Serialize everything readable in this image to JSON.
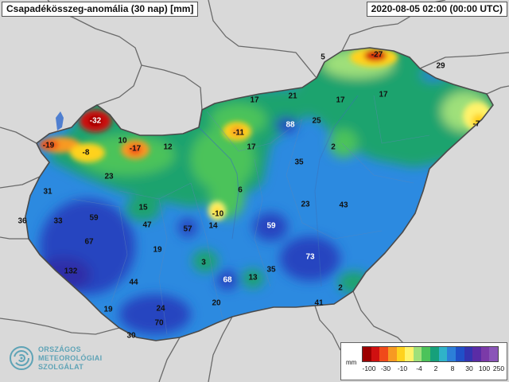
{
  "title": "Csapadékösszeg-anomália (30 nap) [mm]",
  "timestamp": "2020-08-05 02:00 (00:00 UTC)",
  "logo": {
    "line1": "ORSZÁGOS",
    "line2": "METEOROLÓGIAI",
    "line3": "SZOLGÁLAT",
    "icon": "swirl-logo-icon"
  },
  "legend": {
    "unit": "mm",
    "ticks": [
      "-100",
      "-30",
      "-10",
      "-4",
      "2",
      "8",
      "30",
      "100",
      "250"
    ],
    "colors": [
      "#9c0000",
      "#d01010",
      "#f04a1a",
      "#f79a22",
      "#ffd21e",
      "#fff36a",
      "#9fe07a",
      "#4cc35a",
      "#16a07a",
      "#2fb3c9",
      "#2c7fd8",
      "#2050c8",
      "#3434b0",
      "#5a2ca6",
      "#7b3aa8",
      "#8a55b8"
    ]
  },
  "colors": {
    "wet_blue": "#2c8ae0",
    "deep_blue": "#2545c0",
    "green": "#1aa36e",
    "dry_red": "#d01010"
  },
  "stations": [
    {
      "id": "s01",
      "text": "-27"
    },
    {
      "id": "s02",
      "text": "5"
    },
    {
      "id": "s03",
      "text": "29"
    },
    {
      "id": "s04",
      "text": "17"
    },
    {
      "id": "s05",
      "text": "21"
    },
    {
      "id": "s06",
      "text": "17"
    },
    {
      "id": "s07",
      "text": "17"
    },
    {
      "id": "s08",
      "text": "-7"
    },
    {
      "id": "s09",
      "text": "-32"
    },
    {
      "id": "s10",
      "text": "-19"
    },
    {
      "id": "s11",
      "text": "-8"
    },
    {
      "id": "s12",
      "text": "10"
    },
    {
      "id": "s13",
      "text": "-17"
    },
    {
      "id": "s14",
      "text": "12"
    },
    {
      "id": "s15",
      "text": "-11"
    },
    {
      "id": "s16",
      "text": "17"
    },
    {
      "id": "s17",
      "text": "88"
    },
    {
      "id": "s18",
      "text": "25"
    },
    {
      "id": "s19",
      "text": "2"
    },
    {
      "id": "s20",
      "text": "35"
    },
    {
      "id": "s21",
      "text": "23"
    },
    {
      "id": "s22",
      "text": "31"
    },
    {
      "id": "s23",
      "text": "6"
    },
    {
      "id": "s24",
      "text": "23"
    },
    {
      "id": "s25",
      "text": "43"
    },
    {
      "id": "s26",
      "text": "15"
    },
    {
      "id": "s27",
      "text": "-10"
    },
    {
      "id": "s28",
      "text": "59"
    },
    {
      "id": "s29",
      "text": "36"
    },
    {
      "id": "s30",
      "text": "33"
    },
    {
      "id": "s31",
      "text": "59"
    },
    {
      "id": "s32",
      "text": "47"
    },
    {
      "id": "s33",
      "text": "57"
    },
    {
      "id": "s34",
      "text": "14"
    },
    {
      "id": "s35",
      "text": "67"
    },
    {
      "id": "s36",
      "text": "19"
    },
    {
      "id": "s37",
      "text": "73"
    },
    {
      "id": "s38",
      "text": "3"
    },
    {
      "id": "s39",
      "text": "132"
    },
    {
      "id": "s40",
      "text": "35"
    },
    {
      "id": "s41",
      "text": "68"
    },
    {
      "id": "s42",
      "text": "13"
    },
    {
      "id": "s43",
      "text": "44"
    },
    {
      "id": "s44",
      "text": "2"
    },
    {
      "id": "s45",
      "text": "20"
    },
    {
      "id": "s46",
      "text": "41"
    },
    {
      "id": "s47",
      "text": "19"
    },
    {
      "id": "s48",
      "text": "24"
    },
    {
      "id": "s49",
      "text": "70"
    },
    {
      "id": "s50",
      "text": "30"
    }
  ]
}
